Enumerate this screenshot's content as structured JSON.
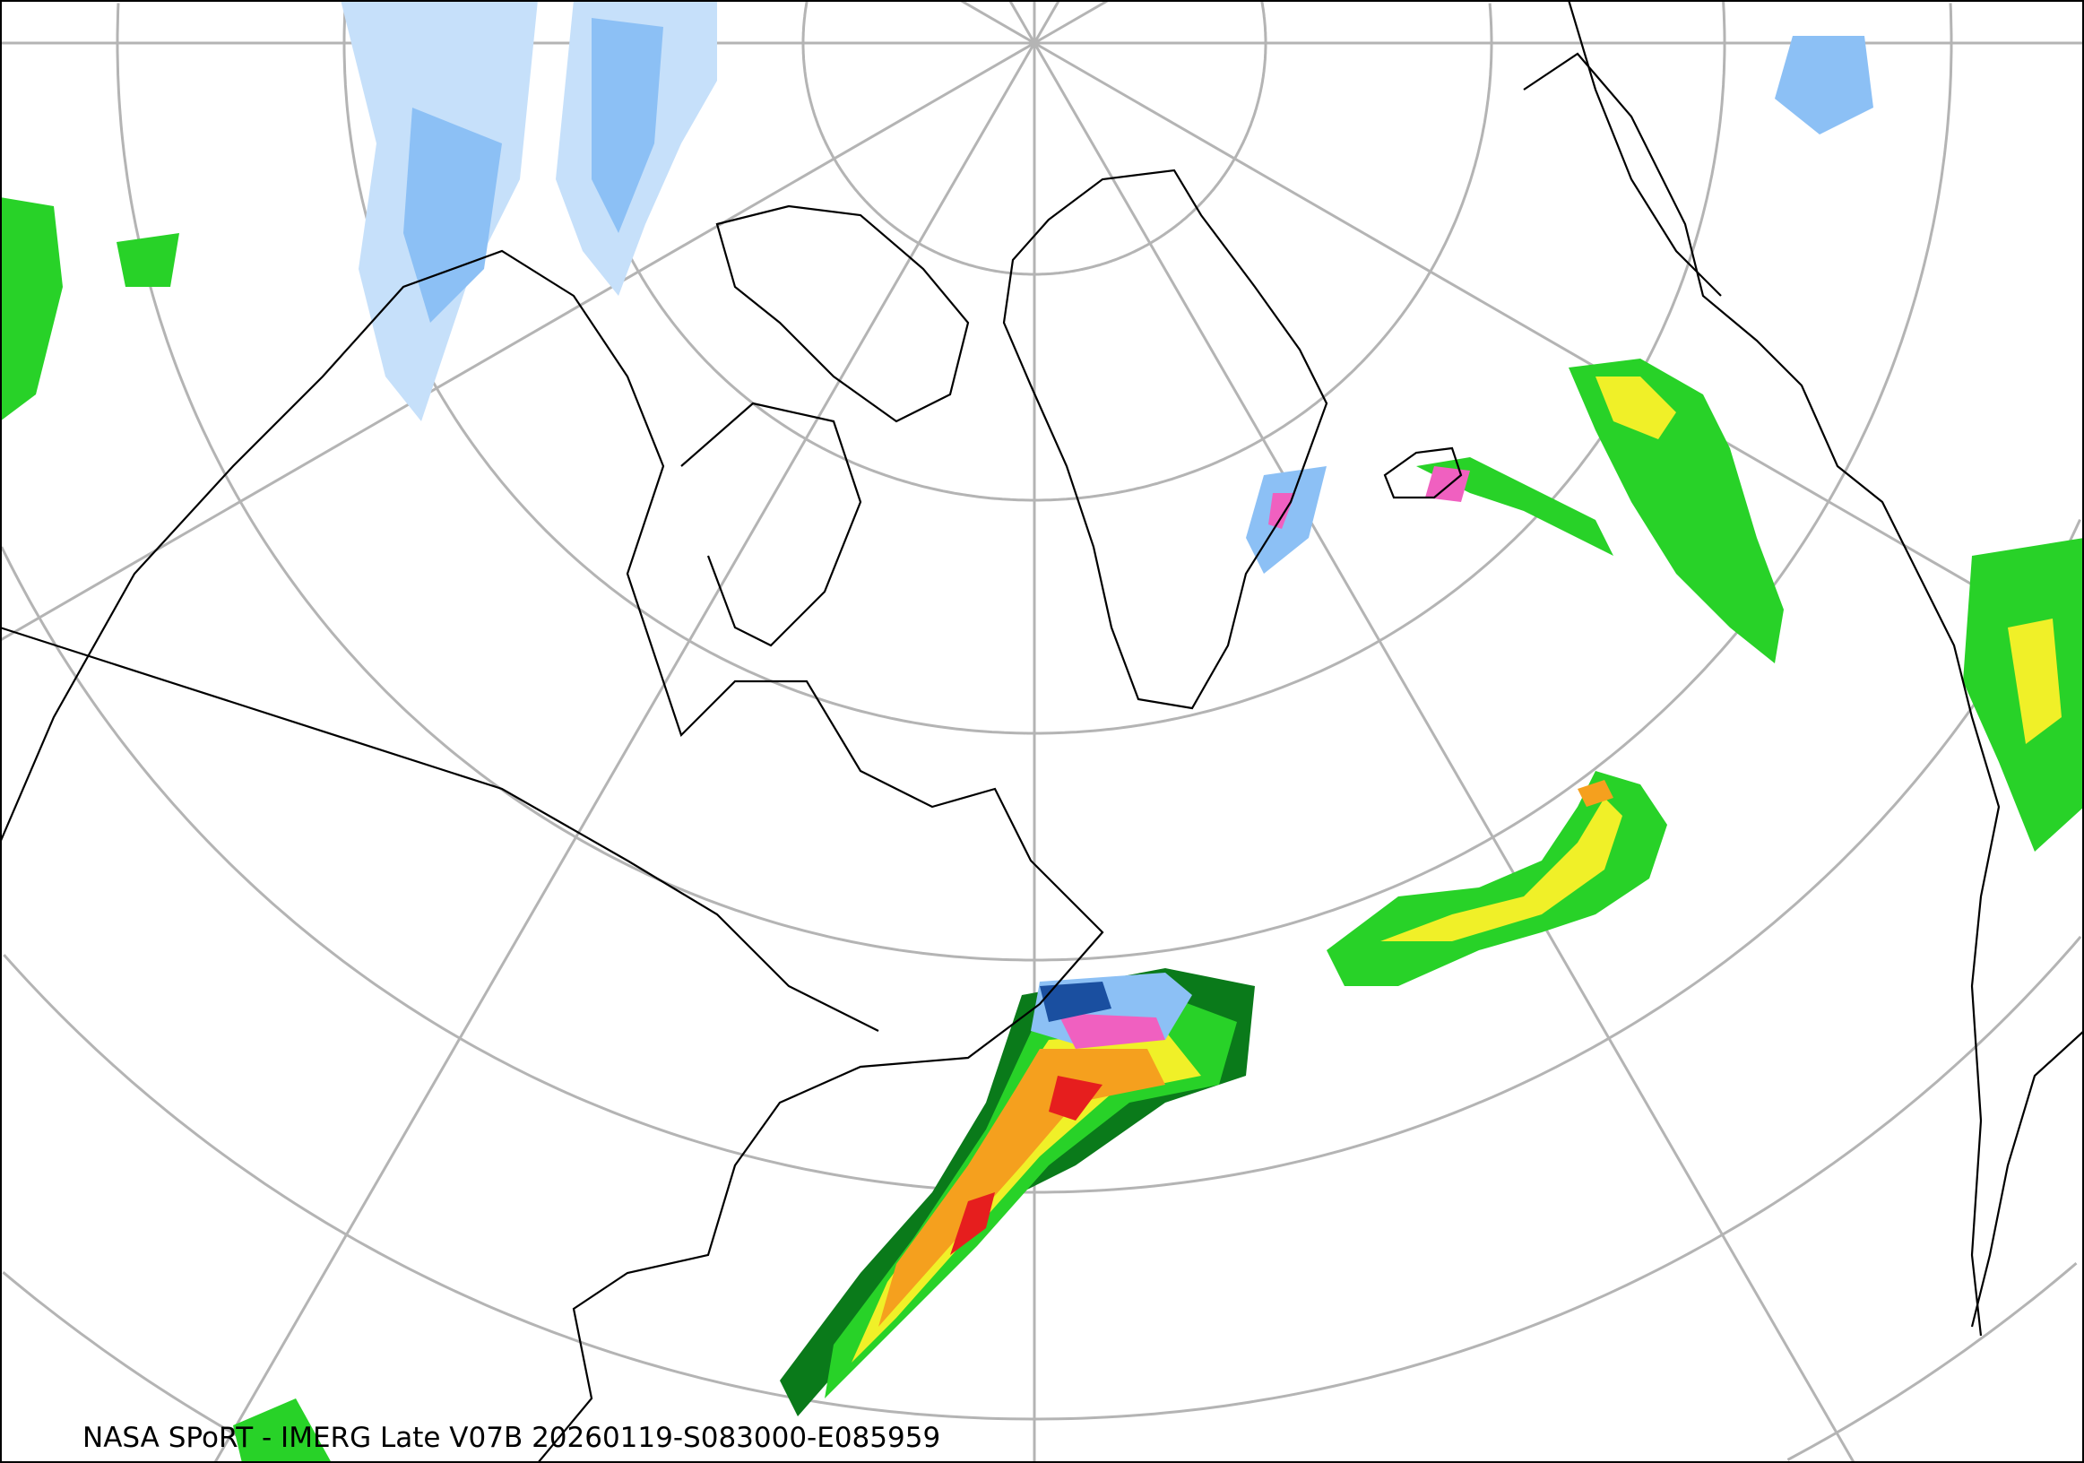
{
  "caption": "NASA SPoRT - IMERG Late V07B 20260119-S083000-E085959",
  "colors": {
    "graticule": "#b4b4b4",
    "coastline": "#000000",
    "snow_light": "#c6e0fa",
    "snow_mid": "#8cc0f5",
    "snow_heavy": "#3a7fd6",
    "snow_dark": "#1a4fa0",
    "mixed": "#f060c0",
    "rain_dark_green": "#0a7a1a",
    "rain_green": "#28d228",
    "rain_yellow": "#f0f028",
    "rain_orange": "#f5a01e",
    "rain_red": "#e61e1e"
  }
}
